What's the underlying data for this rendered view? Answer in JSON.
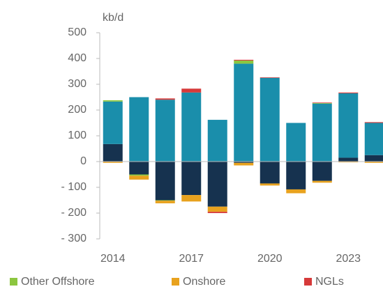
{
  "chart_data": {
    "type": "bar",
    "stacked": true,
    "y_label": "kb/d",
    "categories": [
      "2014",
      null,
      null,
      "2017",
      null,
      null,
      "2020",
      null,
      null,
      "2023",
      null
    ],
    "series": [
      {
        "color": "#16324f",
        "values": [
          68,
          -50,
          -150,
          -130,
          -175,
          -5,
          -85,
          -108,
          -75,
          15,
          25
        ]
      },
      {
        "color": "#1a8eab",
        "values": [
          165,
          250,
          240,
          268,
          162,
          380,
          325,
          150,
          225,
          250,
          125
        ]
      },
      {
        "name": "Other Offshore",
        "color": "#8cc63f",
        "values": [
          5,
          -5,
          -2,
          0,
          0,
          12,
          0,
          0,
          2,
          0,
          0
        ]
      },
      {
        "name": "Onshore",
        "color": "#e8a21e",
        "values": [
          -5,
          -15,
          -10,
          -25,
          -20,
          -10,
          -8,
          -15,
          -7,
          -3,
          -5
        ]
      },
      {
        "name": "NGLs",
        "color": "#d63a3a",
        "values": [
          0,
          0,
          5,
          15,
          -5,
          3,
          2,
          0,
          2,
          3,
          3
        ]
      }
    ],
    "ylim": [
      -300,
      500
    ],
    "yticks": [
      {
        "value": -300,
        "label": "- 300"
      },
      {
        "value": -200,
        "label": "- 200"
      },
      {
        "value": -100,
        "label": "- 100"
      },
      0,
      100,
      200,
      300,
      400,
      500
    ]
  }
}
